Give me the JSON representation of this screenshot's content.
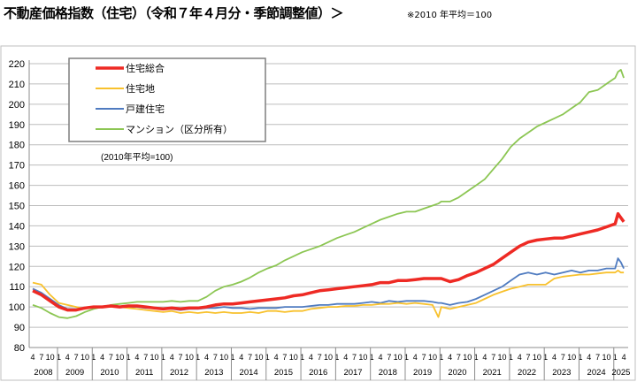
{
  "title": "不動産価格指数（住宅）（令和７年４月分・季節調整値）＞",
  "note": "※2010 年平均＝100",
  "chart_data": {
    "type": "line",
    "base_note": "(2010年平均=100)",
    "ylim": [
      80,
      220
    ],
    "yticks": [
      80,
      90,
      100,
      110,
      120,
      130,
      140,
      150,
      160,
      170,
      180,
      190,
      200,
      210,
      220
    ],
    "grid": true,
    "legend_placement": "top-left",
    "month_tick_labels": [
      "4",
      "7",
      "10",
      "1"
    ],
    "years": [
      "2008",
      "2009",
      "2010",
      "2011",
      "2012",
      "2013",
      "2014",
      "2015",
      "2016",
      "2017",
      "2018",
      "2019",
      "2020",
      "2021",
      "2022",
      "2023",
      "2024",
      "2025"
    ],
    "x": [
      "2008-04",
      "2008-07",
      "2008-10",
      "2009-01",
      "2009-04",
      "2009-07",
      "2009-10",
      "2010-01",
      "2010-04",
      "2010-07",
      "2010-10",
      "2011-01",
      "2011-04",
      "2011-07",
      "2011-10",
      "2012-01",
      "2012-04",
      "2012-07",
      "2012-10",
      "2013-01",
      "2013-04",
      "2013-07",
      "2013-10",
      "2014-01",
      "2014-04",
      "2014-07",
      "2014-10",
      "2015-01",
      "2015-04",
      "2015-07",
      "2015-10",
      "2016-01",
      "2016-04",
      "2016-07",
      "2016-10",
      "2017-01",
      "2017-04",
      "2017-07",
      "2017-10",
      "2018-01",
      "2018-04",
      "2018-07",
      "2018-10",
      "2019-01",
      "2019-04",
      "2019-07",
      "2019-10",
      "2019-12",
      "2020-01",
      "2020-04",
      "2020-07",
      "2020-10",
      "2021-01",
      "2021-04",
      "2021-07",
      "2021-10",
      "2022-01",
      "2022-04",
      "2022-07",
      "2022-10",
      "2023-01",
      "2023-04",
      "2023-07",
      "2023-10",
      "2024-01",
      "2024-04",
      "2024-07",
      "2024-10",
      "2025-01",
      "2025-02",
      "2025-03",
      "2025-04"
    ],
    "series": [
      {
        "name": "住宅総合",
        "color": "#ee2a24",
        "width": 3.5,
        "values": [
          108,
          106,
          103,
          100,
          98.5,
          98.5,
          99.5,
          100,
          100,
          100.5,
          100,
          100.5,
          100.5,
          100,
          99.5,
          99,
          99.5,
          99,
          99.5,
          99.5,
          100,
          101,
          101.5,
          101.5,
          102,
          102.5,
          103,
          103.5,
          104,
          104.5,
          105.5,
          106,
          107,
          108,
          108.5,
          109,
          109.5,
          110,
          110.5,
          111,
          112,
          112,
          113,
          113,
          113.5,
          114,
          114,
          114,
          114,
          112.5,
          113.5,
          115.5,
          117,
          119,
          121,
          124,
          127,
          130,
          132,
          133,
          133.5,
          134,
          134,
          135,
          136,
          137,
          138,
          139.5,
          141,
          146,
          144,
          142
        ]
      },
      {
        "name": "住宅地",
        "color": "#f8c12d",
        "width": 1.8,
        "values": [
          112,
          111,
          106,
          102,
          101,
          100,
          99,
          100,
          100,
          100,
          100,
          99.5,
          99,
          98.5,
          98,
          97.5,
          98,
          97,
          97.5,
          97,
          97.5,
          97,
          97.5,
          97,
          97,
          97.5,
          97,
          98,
          98,
          97.5,
          98,
          98,
          99,
          99.5,
          100,
          100,
          100.5,
          100.5,
          101,
          101,
          101.5,
          101.5,
          102,
          101.5,
          102,
          101.5,
          101,
          95,
          100,
          99,
          100,
          101,
          102,
          104,
          106,
          107.5,
          109,
          110,
          111,
          111,
          111,
          114,
          115,
          115.5,
          116,
          116,
          116.5,
          117,
          117,
          118,
          117,
          117
        ]
      },
      {
        "name": "戸建住宅",
        "color": "#4f7bc0",
        "width": 1.8,
        "values": [
          109,
          107,
          104,
          101,
          99,
          99,
          99.5,
          100,
          100,
          100.5,
          100,
          100,
          100,
          99.5,
          99.5,
          99,
          99,
          98.5,
          99,
          99,
          99.5,
          99.5,
          100,
          99.5,
          99.5,
          99,
          99.5,
          99.5,
          99.5,
          100,
          100,
          100,
          100.5,
          101,
          101,
          101.5,
          101.5,
          101.5,
          102,
          102.5,
          102,
          103,
          102.5,
          103,
          103,
          103,
          102.5,
          102,
          102,
          101,
          102,
          102.5,
          104,
          106,
          108,
          110,
          113,
          116,
          117,
          116,
          117,
          116,
          117,
          118,
          117,
          118,
          118,
          119,
          119,
          124,
          122,
          119
        ]
      },
      {
        "name": "マンション（区分所有）",
        "color": "#8cc653",
        "width": 1.8,
        "values": [
          101,
          99.5,
          97,
          95,
          94.5,
          95.5,
          97.5,
          99,
          100,
          101,
          101.5,
          102,
          102.5,
          102.5,
          102.5,
          102.5,
          103,
          102.5,
          103,
          103,
          105,
          108,
          110,
          111,
          112.5,
          114.5,
          117,
          119,
          120.5,
          123,
          125,
          127,
          128.5,
          130,
          132,
          134,
          135.5,
          137,
          139,
          141,
          143,
          144.5,
          146,
          147,
          147,
          148.5,
          150,
          151,
          152,
          152,
          154,
          157,
          160,
          163,
          168,
          173,
          179,
          183,
          186,
          189,
          191,
          193,
          195,
          198,
          201,
          206,
          207,
          210,
          213,
          216,
          217,
          213
        ]
      }
    ]
  }
}
